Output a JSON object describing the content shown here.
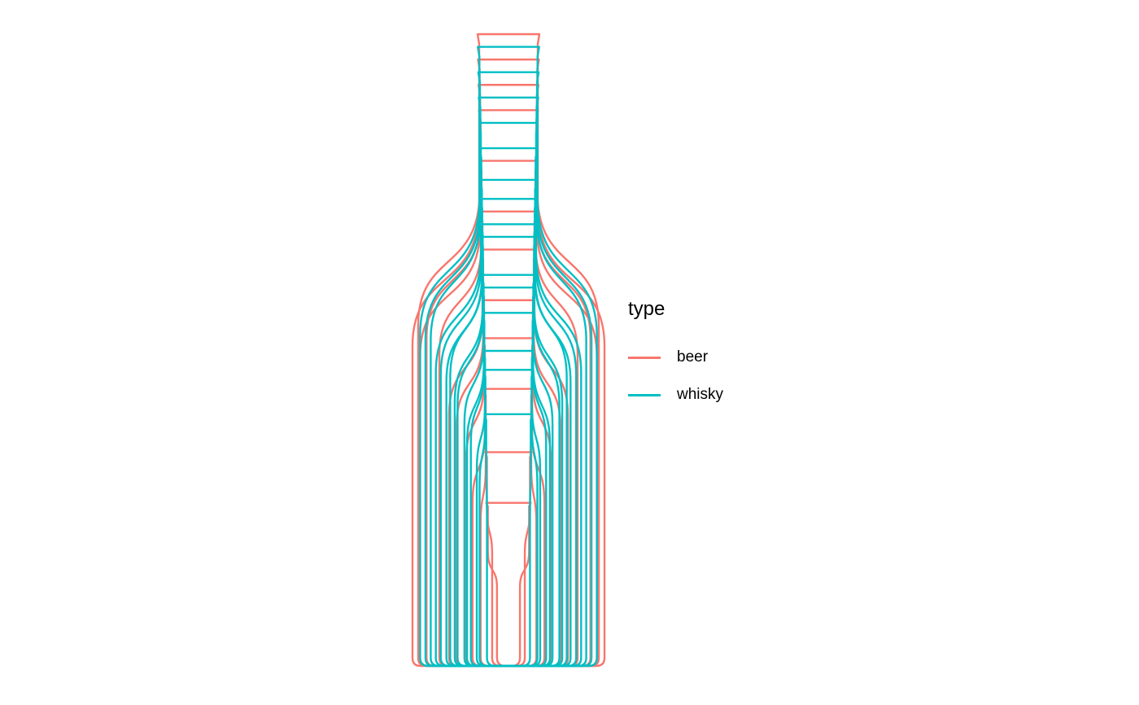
{
  "chart_data": {
    "type": "line",
    "title": "",
    "xlabel": "",
    "ylabel": "",
    "grid": false,
    "axes_visible": false,
    "legend_position": "right",
    "legend": {
      "title": "type",
      "entries": [
        {
          "label": "beer",
          "color": "#F8766D"
        },
        {
          "label": "whisky",
          "color": "#00BFC4"
        }
      ]
    },
    "series": [
      {
        "type": "beer",
        "scale": 1.0,
        "neck": 0.22,
        "shoulder": 0.5,
        "body": 1.0
      },
      {
        "type": "beer",
        "scale": 0.96,
        "neck": 0.26,
        "shoulder": 0.4,
        "body": 0.98
      },
      {
        "type": "beer",
        "scale": 0.92,
        "neck": 0.3,
        "shoulder": 0.45,
        "body": 1.0
      },
      {
        "type": "beer",
        "scale": 0.88,
        "neck": 0.28,
        "shoulder": 0.35,
        "body": 0.97
      },
      {
        "type": "beer",
        "scale": 0.8,
        "neck": 0.3,
        "shoulder": 0.3,
        "body": 0.9
      },
      {
        "type": "beer",
        "scale": 0.72,
        "neck": 0.34,
        "shoulder": 0.42,
        "body": 0.86
      },
      {
        "type": "beer",
        "scale": 0.66,
        "neck": 0.34,
        "shoulder": 0.38,
        "body": 0.82
      },
      {
        "type": "beer",
        "scale": 0.58,
        "neck": 0.38,
        "shoulder": 0.4,
        "body": 0.76
      },
      {
        "type": "beer",
        "scale": 0.52,
        "neck": 0.34,
        "shoulder": 0.52,
        "body": 0.72
      },
      {
        "type": "beer",
        "scale": 0.44,
        "neck": 0.36,
        "shoulder": 0.5,
        "body": 0.66
      },
      {
        "type": "beer",
        "scale": 0.34,
        "neck": 0.4,
        "shoulder": 0.48,
        "body": 0.5
      },
      {
        "type": "beer",
        "scale": 0.26,
        "neck": 0.34,
        "shoulder": 0.55,
        "body": 0.46
      },
      {
        "type": "whisky",
        "scale": 0.98,
        "neck": 0.3,
        "shoulder": 0.45,
        "body": 0.94
      },
      {
        "type": "whisky",
        "scale": 0.94,
        "neck": 0.26,
        "shoulder": 0.42,
        "body": 0.92
      },
      {
        "type": "whisky",
        "scale": 0.9,
        "neck": 0.32,
        "shoulder": 0.38,
        "body": 0.9
      },
      {
        "type": "whisky",
        "scale": 0.86,
        "neck": 0.28,
        "shoulder": 0.44,
        "body": 0.88
      },
      {
        "type": "whisky",
        "scale": 0.82,
        "neck": 0.34,
        "shoulder": 0.4,
        "body": 0.86
      },
      {
        "type": "whisky",
        "scale": 0.77,
        "neck": 0.3,
        "shoulder": 0.36,
        "body": 0.84
      },
      {
        "type": "whisky",
        "scale": 0.74,
        "neck": 0.32,
        "shoulder": 0.3,
        "body": 0.82
      },
      {
        "type": "whisky",
        "scale": 0.7,
        "neck": 0.36,
        "shoulder": 0.34,
        "body": 0.8
      },
      {
        "type": "whisky",
        "scale": 0.68,
        "neck": 0.3,
        "shoulder": 0.32,
        "body": 0.78
      },
      {
        "type": "whisky",
        "scale": 0.62,
        "neck": 0.34,
        "shoulder": 0.3,
        "body": 0.74
      },
      {
        "type": "whisky",
        "scale": 0.6,
        "neck": 0.32,
        "shoulder": 0.36,
        "body": 0.72
      },
      {
        "type": "whisky",
        "scale": 0.56,
        "neck": 0.36,
        "shoulder": 0.28,
        "body": 0.7
      },
      {
        "type": "whisky",
        "scale": 0.5,
        "neck": 0.4,
        "shoulder": 0.3,
        "body": 0.66
      },
      {
        "type": "whisky",
        "scale": 0.47,
        "neck": 0.38,
        "shoulder": 0.32,
        "body": 0.64
      },
      {
        "type": "whisky",
        "scale": 0.4,
        "neck": 0.42,
        "shoulder": 0.34,
        "body": 0.56
      }
    ]
  }
}
